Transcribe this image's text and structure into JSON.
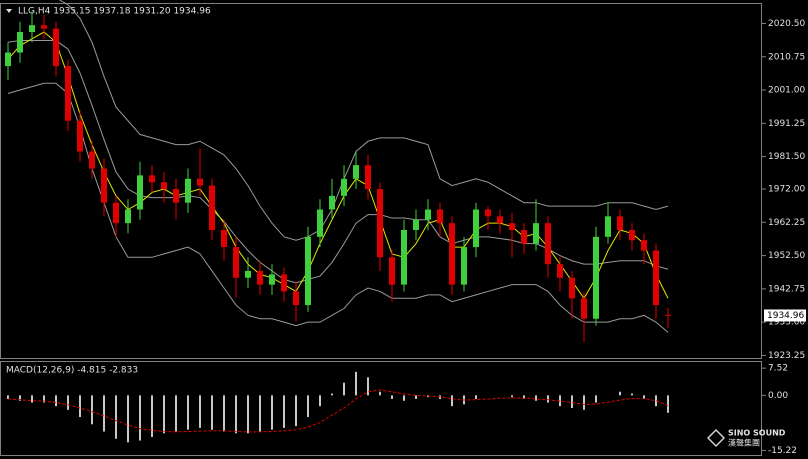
{
  "chart_data": [
    {
      "type": "candlestick",
      "title": "LLG,H4  1935.15 1937.18 1931.20 1934.96",
      "current_label": "1934.96",
      "current": 1934.96,
      "up_color": "#3fcf3f",
      "down_color": "#e00000",
      "open": [
        2008,
        2012,
        2018,
        2020,
        2019,
        2008,
        1992,
        1983,
        1978,
        1968,
        1962,
        1966,
        1976,
        1974,
        1972,
        1968,
        1975,
        1973,
        1960,
        1955,
        1946,
        1948,
        1944,
        1947,
        1942,
        1938,
        1958,
        1966,
        1970,
        1975,
        1979,
        1972,
        1952,
        1944,
        1960,
        1963,
        1966,
        1962,
        1944,
        1955,
        1966,
        1964,
        1962,
        1960,
        1956,
        1962,
        1950,
        1946,
        1940,
        1934,
        1958,
        1964,
        1960,
        1957,
        1954,
        1935.15
      ],
      "high": [
        2015,
        2021,
        2024,
        2023,
        2021,
        2010,
        1995,
        1986,
        1981,
        1970,
        1969,
        1980,
        1979,
        1977,
        1975,
        1978,
        1984,
        1975,
        1963,
        1958,
        1952,
        1951,
        1950,
        1949,
        1945,
        1961,
        1969,
        1975,
        1979,
        1983,
        1982,
        1974,
        1954,
        1963,
        1966,
        1969,
        1968,
        1964,
        1958,
        1968,
        1967,
        1966,
        1965,
        1962,
        1969,
        1964,
        1952,
        1948,
        1942,
        1961,
        1968,
        1966,
        1962,
        1959,
        1956,
        1937.18
      ],
      "low": [
        2004,
        2009,
        2015,
        2016,
        2005,
        1989,
        1980,
        1975,
        1964,
        1958,
        1959,
        1963,
        1971,
        1968,
        1963,
        1965,
        1970,
        1957,
        1951,
        1940,
        1943,
        1941,
        1941,
        1939,
        1933,
        1936,
        1955,
        1963,
        1967,
        1972,
        1969,
        1948,
        1939,
        1942,
        1957,
        1960,
        1958,
        1941,
        1942,
        1952,
        1960,
        1959,
        1952,
        1953,
        1954,
        1946,
        1942,
        1934,
        1927,
        1932,
        1956,
        1957,
        1954,
        1950,
        1934,
        1931.2
      ],
      "close": [
        2012,
        2018,
        2020,
        2019,
        2008,
        1992,
        1983,
        1978,
        1968,
        1962,
        1966,
        1976,
        1974,
        1972,
        1968,
        1975,
        1973,
        1960,
        1955,
        1946,
        1948,
        1944,
        1947,
        1942,
        1938,
        1958,
        1966,
        1970,
        1975,
        1979,
        1972,
        1952,
        1944,
        1960,
        1963,
        1966,
        1962,
        1944,
        1955,
        1966,
        1964,
        1962,
        1960,
        1956,
        1962,
        1950,
        1946,
        1940,
        1934,
        1958,
        1964,
        1960,
        1957,
        1954,
        1938,
        1934.96
      ],
      "overlays": [
        {
          "color": "#9a9a9a",
          "values": [
            2030,
            2030,
            2029,
            2028,
            2028,
            2026,
            2022,
            2015,
            2005,
            1996,
            1992,
            1988,
            1987,
            1986,
            1985,
            1985,
            1986,
            1984,
            1982,
            1978,
            1973,
            1967,
            1962,
            1958,
            1957,
            1958,
            1960,
            1966,
            1975,
            1983,
            1986,
            1987,
            1987,
            1987,
            1986,
            1985,
            1975,
            1973,
            1974,
            1975,
            1974,
            1972,
            1970,
            1968,
            1968,
            1967,
            1967,
            1967,
            1967,
            1967,
            1968,
            1968,
            1968,
            1967,
            1966,
            1967
          ]
        },
        {
          "color": "#9a9a9a",
          "values": [
            2015,
            2015.5,
            2015.5,
            2015.5,
            2015.5,
            2013,
            2006,
            1996.5,
            1986.5,
            1977,
            1972,
            1970,
            1969.5,
            1969.5,
            1969.5,
            1970,
            1969.5,
            1966,
            1962.5,
            1958,
            1954,
            1950.5,
            1948,
            1945.5,
            1944.5,
            1945.5,
            1946.5,
            1950.5,
            1956,
            1962,
            1964.5,
            1964.5,
            1963.5,
            1963.5,
            1963,
            1963,
            1958,
            1956,
            1957,
            1958,
            1958,
            1957.5,
            1957,
            1956,
            1956,
            1954.5,
            1952.5,
            1951,
            1950,
            1950,
            1950.5,
            1951,
            1951,
            1951,
            1949.5,
            1948.5
          ]
        },
        {
          "color": "#9a9a9a",
          "values": [
            2000,
            2001,
            2002,
            2003,
            2003,
            2000,
            1990,
            1978,
            1968,
            1958,
            1952,
            1952,
            1952,
            1953,
            1954,
            1955,
            1953,
            1948,
            1943,
            1938,
            1935,
            1934,
            1934,
            1933,
            1932,
            1933,
            1933,
            1935,
            1937,
            1941,
            1943,
            1942,
            1940,
            1940,
            1940,
            1941,
            1941,
            1939,
            1940,
            1941,
            1942,
            1943,
            1944,
            1944,
            1944,
            1942,
            1938,
            1935,
            1933,
            1933,
            1933,
            1934,
            1934,
            1935,
            1933,
            1930
          ]
        },
        {
          "color": "#e6e600",
          "values": [
            2010,
            2014,
            2016,
            2018,
            2015,
            2005,
            1994,
            1985,
            1977,
            1970,
            1966,
            1968,
            1971,
            1972,
            1970,
            1971,
            1972,
            1967,
            1962,
            1955,
            1950,
            1947,
            1946,
            1944,
            1942,
            1948,
            1956,
            1963,
            1970,
            1975,
            1973,
            1963,
            1953,
            1952,
            1956,
            1962,
            1963,
            1955,
            1955,
            1960,
            1962,
            1962,
            1961,
            1958,
            1959,
            1955,
            1950,
            1945,
            1940,
            1946,
            1954,
            1960,
            1959,
            1956,
            1947,
            1940
          ]
        }
      ],
      "ylim": [
        1922.5,
        2026.5
      ],
      "yticks": [
        {
          "value": 2020.5,
          "label": "2020.50"
        },
        {
          "value": 2010.75,
          "label": "2010.75"
        },
        {
          "value": 2001,
          "label": "2001.00"
        },
        {
          "value": 1991.25,
          "label": "1991.25"
        },
        {
          "value": 1981.5,
          "label": "1981.50"
        },
        {
          "value": 1972,
          "label": "1972.00"
        },
        {
          "value": 1962.25,
          "label": "1962.25"
        },
        {
          "value": 1952.5,
          "label": "1952.50"
        },
        {
          "value": 1942.75,
          "label": "1942.75"
        },
        {
          "value": 1933,
          "label": "1933.00"
        },
        {
          "value": 1923.25,
          "label": "1923.25"
        }
      ]
    },
    {
      "type": "macd",
      "title": "MACD(12,26,9) -4.815 -2.833",
      "hist_color": "#c8c8c8",
      "signal_color": "#e00000",
      "values": [
        -1,
        -1.5,
        -2,
        -2,
        -3,
        -4,
        -6,
        -8,
        -10,
        -12,
        -13,
        -12.5,
        -11.5,
        -10.5,
        -10,
        -9.5,
        -9,
        -9.5,
        -10,
        -10.5,
        -10.5,
        -10,
        -9.5,
        -9,
        -8.5,
        -6,
        -3,
        0.5,
        3.5,
        6.5,
        5,
        1,
        -1,
        -1.5,
        -1,
        -0.5,
        -1,
        -3,
        -2.5,
        -1,
        0,
        0,
        -0.5,
        -1,
        -1.5,
        -2,
        -3,
        -3.5,
        -4,
        -2,
        0,
        1,
        0.5,
        -1,
        -3,
        -4.815
      ],
      "signal": [
        -1,
        -1.2,
        -1.5,
        -1.6,
        -2,
        -2.6,
        -3.5,
        -4.5,
        -5.7,
        -7,
        -8.2,
        -9.2,
        -9.7,
        -10,
        -10.1,
        -10,
        -9.9,
        -9.8,
        -9.8,
        -10,
        -10.1,
        -10.1,
        -10,
        -9.8,
        -9.5,
        -8.8,
        -7.5,
        -5.5,
        -3.5,
        -1,
        1,
        1.5,
        1,
        0.4,
        0,
        -0.2,
        -0.4,
        -1,
        -1.3,
        -1.2,
        -1,
        -0.8,
        -0.7,
        -0.8,
        -1,
        -1.2,
        -1.6,
        -2,
        -2.5,
        -2.4,
        -1.9,
        -1.3,
        -0.9,
        -0.9,
        -1.5,
        -2.833
      ],
      "ylim": [
        -16.5,
        9.5
      ],
      "yticks": [
        {
          "value": 7.52,
          "label": "7.52"
        },
        {
          "value": 0,
          "label": "0.00"
        },
        {
          "value": -15.22,
          "label": "-15.22"
        }
      ]
    }
  ],
  "watermark": {
    "brand": "SINO SOUND",
    "chinese": "漢聲集團"
  }
}
